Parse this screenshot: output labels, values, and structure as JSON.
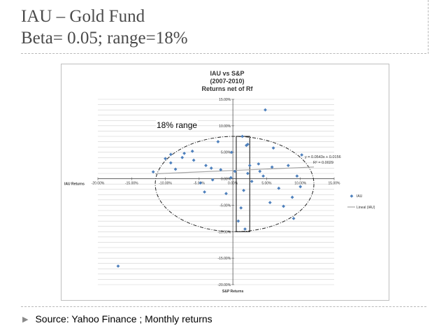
{
  "slide": {
    "title_line1": "IAU – Gold Fund",
    "title_line2": "Beta= 0.05; range=18%",
    "footer": "Source: Yahoo Finance ; Monthly returns",
    "accent_color": "#4f81bd"
  },
  "chart_data": {
    "type": "scatter",
    "title": [
      "IAU vs S&P",
      "(2007-2010)",
      "Returns net of Rf"
    ],
    "xlabel": "S&P Returns",
    "ylabel": "IAU Returns",
    "xlim": [
      -0.2,
      0.15
    ],
    "ylim": [
      -0.2,
      0.15
    ],
    "x_ticks": [
      -0.2,
      -0.15,
      -0.1,
      -0.05,
      0.0,
      0.05,
      0.1,
      0.15
    ],
    "y_ticks": [
      0.15,
      0.1,
      0.05,
      0.0,
      -0.05,
      -0.1,
      -0.15,
      -0.2
    ],
    "x_tick_labels": [
      "-20.00%",
      "-15.00%",
      "-10.00%",
      "-5.00%",
      "0.00%",
      "5.00%",
      "10.00%",
      "15.00%"
    ],
    "y_tick_labels": [
      "15.00%",
      "10.00%",
      "5.00%",
      "0.00%",
      "-5.00%",
      "-10.00%",
      "-15.00%",
      "-20.00%"
    ],
    "grid": true,
    "legend": {
      "placement": "right",
      "entries": [
        {
          "label": "IAU",
          "marker": "diamond"
        },
        {
          "label": "Lineal (IAU)",
          "marker": "line"
        }
      ]
    },
    "trendline": {
      "slope": 0.0543,
      "intercept": 0.0156,
      "equation": "y = 0.0543x + 0.0156",
      "r2_label": "R² = 0.0029"
    },
    "annotation": {
      "text": "18% range",
      "box_x": [
        0.005,
        0.025
      ],
      "box_y": [
        -0.1,
        0.08
      ],
      "ellipse_x": [
        -0.115,
        0.12
      ],
      "ellipse_y": [
        -0.1,
        0.08
      ]
    },
    "series": [
      {
        "name": "IAU",
        "color": "#4f81bd",
        "x": [
          -0.17,
          -0.075,
          -0.058,
          -0.022,
          0.022,
          0.018,
          0.048,
          0.102,
          -0.118,
          -0.1,
          -0.092,
          -0.092,
          -0.085,
          -0.072,
          -0.06,
          -0.048,
          -0.042,
          -0.04,
          -0.032,
          -0.03,
          -0.018,
          -0.01,
          -0.003,
          -0.002,
          0.003,
          0.008,
          0.012,
          0.014,
          0.016,
          0.022,
          0.025,
          0.028,
          0.038,
          0.04,
          0.045,
          0.055,
          0.058,
          0.06,
          0.068,
          0.075,
          0.082,
          0.088,
          0.09,
          0.095,
          0.1,
          0.02
        ],
        "y": [
          -0.165,
          0.04,
          0.035,
          0.07,
          0.065,
          -0.095,
          0.13,
          0.045,
          0.013,
          0.038,
          0.03,
          0.046,
          0.018,
          0.048,
          0.052,
          -0.008,
          -0.025,
          0.025,
          0.02,
          -0.002,
          0.017,
          -0.028,
          0.002,
          0.05,
          0.014,
          -0.08,
          -0.055,
          0.08,
          -0.022,
          0.01,
          0.025,
          -0.005,
          0.028,
          0.014,
          0.005,
          -0.045,
          0.022,
          0.058,
          -0.018,
          -0.052,
          0.025,
          -0.035,
          -0.075,
          0.005,
          -0.015,
          0.063
        ]
      }
    ]
  }
}
